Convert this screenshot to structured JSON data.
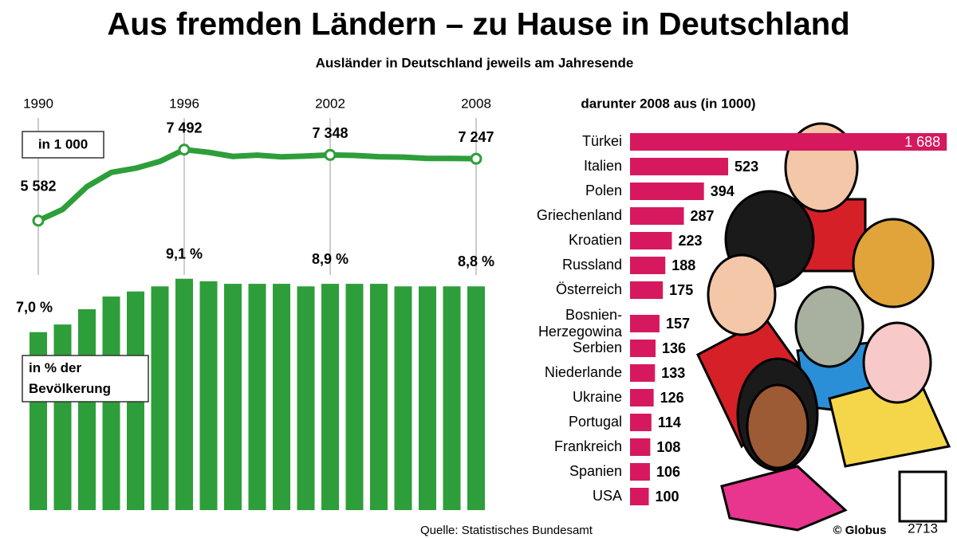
{
  "title": "Aus fremden Ländern – zu Hause in Deutschland",
  "subtitle": "Ausländer in Deutschland jeweils am Jahresende",
  "source": "Quelle: Statistisches Bundesamt",
  "credit": "© Globus",
  "code": "2713",
  "chart_data": [
    {
      "type": "line",
      "annotation": "in 1 000",
      "color": "#2e9e3a",
      "x": [
        1990,
        1991,
        1992,
        1993,
        1994,
        1995,
        1996,
        1997,
        1998,
        1999,
        2000,
        2001,
        2002,
        2003,
        2004,
        2005,
        2006,
        2007,
        2008
      ],
      "values": [
        5582,
        5882,
        6496,
        6878,
        6991,
        7174,
        7492,
        7419,
        7309,
        7344,
        7297,
        7319,
        7348,
        7335,
        7300,
        7290,
        7256,
        7255,
        7247
      ],
      "value_labels": [
        "5 582",
        null,
        null,
        null,
        null,
        null,
        "7 492",
        null,
        null,
        null,
        null,
        null,
        "7 348",
        null,
        null,
        null,
        null,
        null,
        "7 247"
      ],
      "xlim": [
        1990,
        2008
      ],
      "xticks": [
        1990,
        1996,
        2002,
        2008
      ],
      "ylim": [
        5000,
        8000
      ]
    },
    {
      "type": "bar",
      "annotation": "in % der Bevölkerung",
      "color": "#2e9e3a",
      "x": [
        1990,
        1991,
        1992,
        1993,
        1994,
        1995,
        1996,
        1997,
        1998,
        1999,
        2000,
        2001,
        2002,
        2003,
        2004,
        2005,
        2006,
        2007,
        2008
      ],
      "values": [
        7.0,
        7.3,
        7.9,
        8.4,
        8.6,
        8.8,
        9.1,
        9.0,
        8.9,
        8.9,
        8.9,
        8.8,
        8.9,
        8.9,
        8.9,
        8.8,
        8.8,
        8.8,
        8.8
      ],
      "value_labels": [
        "7,0 %",
        null,
        null,
        null,
        null,
        null,
        "9,1 %",
        null,
        null,
        null,
        null,
        null,
        "8,9 %",
        null,
        null,
        null,
        null,
        null,
        "8,8 %"
      ],
      "xlim": [
        1990,
        2008
      ],
      "ylim": [
        0,
        10
      ]
    },
    {
      "type": "hbar",
      "title": "darunter 2008 aus (in 1000)",
      "color": "#d6195e",
      "categories": [
        "Türkei",
        "Italien",
        "Polen",
        "Griechenland",
        "Kroatien",
        "Russland",
        "Österreich",
        "Bosnien-\nHerzegowina",
        "Serbien",
        "Niederlande",
        "Ukraine",
        "Portugal",
        "Frankreich",
        "Spanien",
        "USA"
      ],
      "values": [
        1688,
        523,
        394,
        287,
        223,
        188,
        175,
        157,
        136,
        133,
        126,
        114,
        108,
        106,
        100
      ],
      "value_labels": [
        "1 688",
        "523",
        "394",
        "287",
        "223",
        "188",
        "175",
        "157",
        "136",
        "133",
        "126",
        "114",
        "108",
        "106",
        "100"
      ],
      "xlim": [
        0,
        1700
      ]
    }
  ]
}
